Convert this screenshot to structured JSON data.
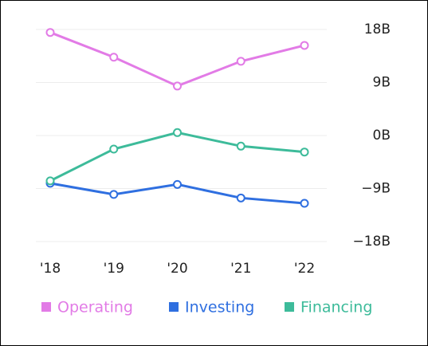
{
  "chart_data": {
    "type": "line",
    "categories": [
      "'18",
      "'19",
      "'20",
      "'21",
      "'22"
    ],
    "series": [
      {
        "name": "Operating",
        "color": "#e27be6",
        "values": [
          17.5,
          13.3,
          8.4,
          12.6,
          15.3
        ]
      },
      {
        "name": "Investing",
        "color": "#2f6fe0",
        "values": [
          -8.1,
          -10.0,
          -8.3,
          -10.6,
          -11.5
        ]
      },
      {
        "name": "Financing",
        "color": "#3dbb9a",
        "values": [
          -7.7,
          -2.3,
          0.5,
          -1.8,
          -2.8
        ]
      }
    ],
    "ylim": [
      -18,
      18
    ],
    "yticks": [
      {
        "value": 18,
        "label": "18B"
      },
      {
        "value": 9,
        "label": "9B"
      },
      {
        "value": 0,
        "label": "0B"
      },
      {
        "value": -9,
        "label": "−9B"
      },
      {
        "value": -18,
        "label": "−18B"
      }
    ],
    "grid": true
  }
}
